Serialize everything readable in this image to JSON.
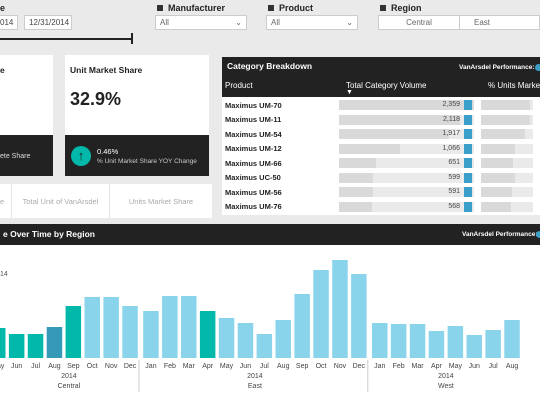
{
  "filters": {
    "date": {
      "title": "e",
      "start": "014",
      "end": "12/31/2014"
    },
    "manufacturer": {
      "title": "Manufacturer",
      "value": "All"
    },
    "product": {
      "title": "Product",
      "value": "All"
    },
    "region": {
      "title": "Region",
      "options": [
        "Central",
        "East"
      ]
    }
  },
  "cards": {
    "card1": {
      "title": "e",
      "footer": "ete Share"
    },
    "market_share": {
      "title": "Unit Market Share",
      "value": "32.9%",
      "change": "0.46%",
      "change_label": "% Unit Market Share YOY Change"
    },
    "tabs": [
      "e",
      "Total Unit of VanArsdel",
      "Units Market Share"
    ]
  },
  "category": {
    "title": "Category Breakdown",
    "performance_label": "VanArsdel Performance:",
    "columns": [
      "Product",
      "Total Category Volume",
      "% Units Market"
    ],
    "rows": [
      {
        "product": "Maximus UM-70",
        "volume": 2359,
        "volume_label": "2,359",
        "pct": 0.95
      },
      {
        "product": "Maximus UM-11",
        "volume": 2118,
        "volume_label": "2,118",
        "pct": 0.95
      },
      {
        "product": "Maximus UM-54",
        "volume": 1917,
        "volume_label": "1,917",
        "pct": 0.85
      },
      {
        "product": "Maximus UM-12",
        "volume": 1066,
        "volume_label": "1,066",
        "pct": 0.65
      },
      {
        "product": "Maximus UM-66",
        "volume": 651,
        "volume_label": "651",
        "pct": 0.62
      },
      {
        "product": "Maximus UC-50",
        "volume": 599,
        "volume_label": "599",
        "pct": 0.65
      },
      {
        "product": "Maximus UM-56",
        "volume": 591,
        "volume_label": "591",
        "pct": 0.6
      },
      {
        "product": "Maximus UM-76",
        "volume": 568,
        "volume_label": "568",
        "pct": 0.58
      }
    ]
  },
  "timechart": {
    "title": "e Over Time by Region",
    "performance_label": "VanArsdel Performance:",
    "edge_label": "14"
  },
  "chart_data": {
    "type": "bar",
    "ylim": [
      0,
      100
    ],
    "regions": [
      {
        "name": "Central",
        "year": "2014",
        "months": [
          "May",
          "Jun",
          "Jul",
          "Aug",
          "Sep",
          "Oct",
          "Nov",
          "Dec"
        ],
        "values": [
          30,
          24,
          24,
          31,
          52,
          61,
          61,
          52
        ],
        "colors": [
          "#01b8aa",
          "#01b8aa",
          "#01b8aa",
          "#3599b8",
          "#01b8aa",
          "#8ad4eb",
          "#8ad4eb",
          "#8ad4eb"
        ],
        "partial": [
          true,
          false,
          false,
          false,
          false,
          false,
          false,
          false
        ]
      },
      {
        "name": "East",
        "year": "2014",
        "months": [
          "Jan",
          "Feb",
          "Mar",
          "Apr",
          "May",
          "Jun",
          "Jul",
          "Aug",
          "Sep",
          "Oct",
          "Nov",
          "Dec"
        ],
        "values": [
          47,
          62,
          62,
          47,
          40,
          35,
          24,
          38,
          64,
          88,
          98,
          84
        ],
        "colors": [
          "#8ad4eb",
          "#8ad4eb",
          "#8ad4eb",
          "#01b8aa",
          "#8ad4eb",
          "#8ad4eb",
          "#8ad4eb",
          "#8ad4eb",
          "#8ad4eb",
          "#8ad4eb",
          "#8ad4eb",
          "#8ad4eb"
        ]
      },
      {
        "name": "West",
        "year": "2014",
        "months": [
          "Jan",
          "Feb",
          "Mar",
          "Apr",
          "May",
          "Jun",
          "Jul",
          "Aug"
        ],
        "values": [
          35,
          34,
          34,
          27,
          32,
          23,
          28,
          38
        ],
        "colors": [
          "#8ad4eb",
          "#8ad4eb",
          "#8ad4eb",
          "#8ad4eb",
          "#8ad4eb",
          "#8ad4eb",
          "#8ad4eb",
          "#8ad4eb"
        ]
      }
    ]
  }
}
